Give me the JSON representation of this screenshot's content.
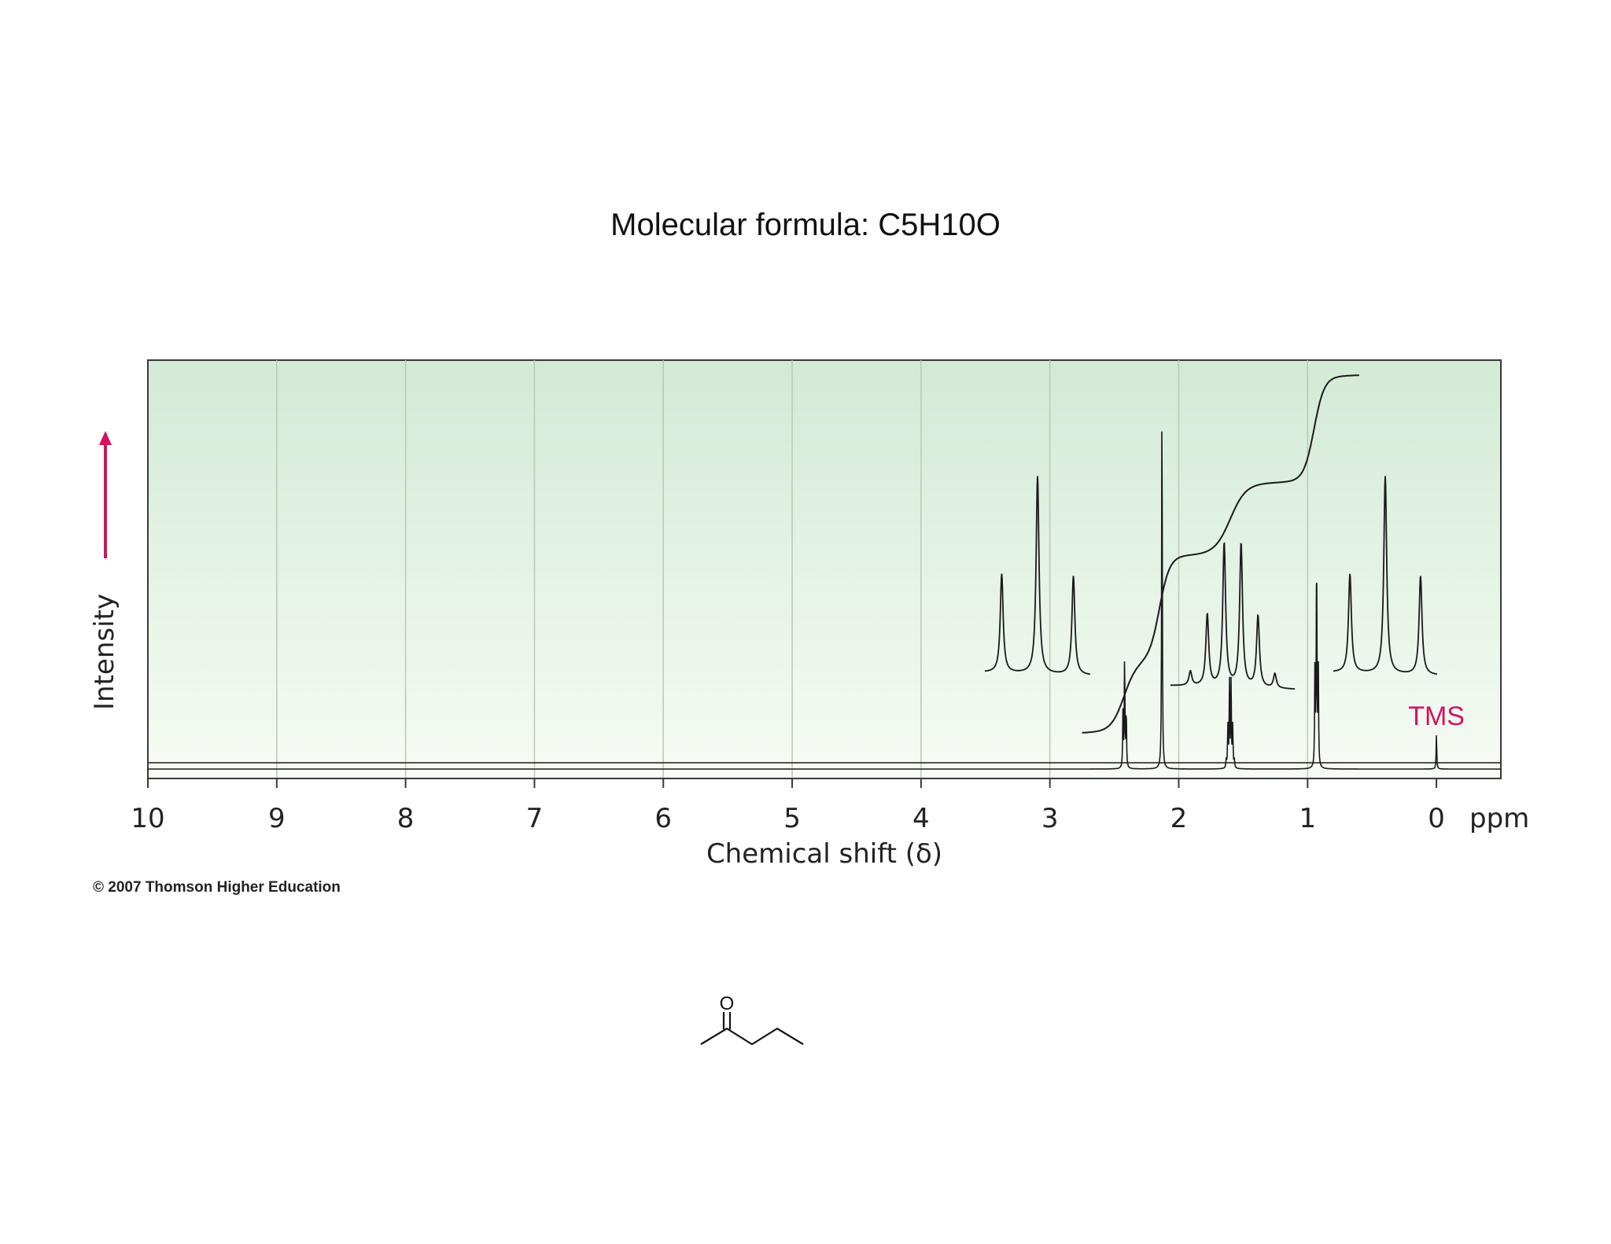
{
  "title": "Molecular formula: C5H10O",
  "copyright": "© 2007 Thomson Higher Education",
  "colors": {
    "plot_bg_top": "#d2ead6",
    "plot_bg_bottom": "#f7fbf5",
    "accent": "#d0155f",
    "trace": "#1a1a1a",
    "grid": "#bcc8b6"
  },
  "chart_data": {
    "type": "line",
    "xlabel": "Chemical shift (δ)",
    "ylabel": "Intensity",
    "x_unit": "ppm",
    "xlim": [
      10,
      -0.5
    ],
    "x_reversed": true,
    "x_ticks": [
      10,
      9,
      8,
      7,
      6,
      5,
      4,
      3,
      2,
      1,
      0
    ],
    "grid": true,
    "annotations": [
      {
        "label": "TMS",
        "x": 0.0
      }
    ],
    "peaks": [
      {
        "shift": 2.42,
        "multiplicity": "triplet",
        "relative_height": 0.3
      },
      {
        "shift": 2.13,
        "multiplicity": "singlet",
        "relative_height": 1.0
      },
      {
        "shift": 1.6,
        "multiplicity": "sextet",
        "relative_height": 0.22
      },
      {
        "shift": 0.93,
        "multiplicity": "triplet",
        "relative_height": 0.58
      },
      {
        "shift": 0.0,
        "multiplicity": "singlet",
        "relative_height": 0.09
      }
    ],
    "integration_steps": [
      {
        "x_start": 2.55,
        "x_end": 2.3,
        "relative_area": 2
      },
      {
        "x_start": 2.25,
        "x_end": 2.05,
        "relative_area": 3
      },
      {
        "x_start": 1.75,
        "x_end": 1.45,
        "relative_area": 2
      },
      {
        "x_start": 1.05,
        "x_end": 0.85,
        "relative_area": 3
      }
    ],
    "insets": [
      {
        "pattern": "triplet",
        "expands_shift": 2.42
      },
      {
        "pattern": "sextet",
        "expands_shift": 1.6
      },
      {
        "pattern": "triplet",
        "expands_shift": 0.93
      }
    ]
  },
  "structure": {
    "atom_label": "O"
  }
}
